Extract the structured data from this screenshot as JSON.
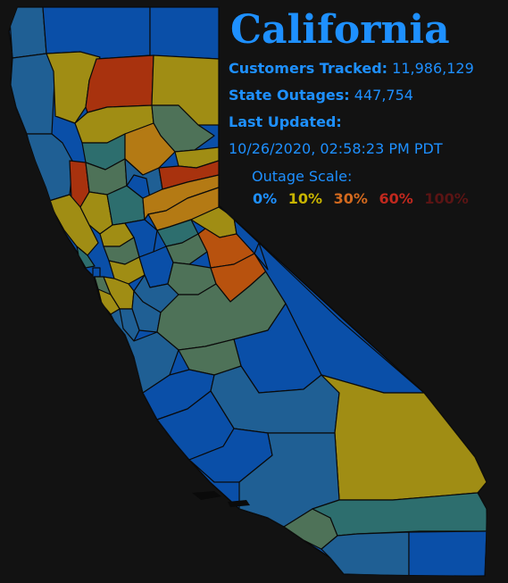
{
  "state": {
    "title": "California",
    "customers_label": "Customers Tracked:",
    "customers_value": "11,986,129",
    "outages_label": "State Outages:",
    "outages_value": "447,754",
    "updated_label": "Last Updated:",
    "updated_value": "10/26/2020, 02:58:23 PM PDT"
  },
  "scale": {
    "title": "Outage Scale:",
    "steps": [
      {
        "label": "0%",
        "color": "#1e90ff"
      },
      {
        "label": "10%",
        "color": "#c8b400"
      },
      {
        "label": "30%",
        "color": "#d2691e"
      },
      {
        "label": "60%",
        "color": "#c0281e"
      },
      {
        "label": "100%",
        "color": "#5a1414"
      }
    ]
  },
  "colors": {
    "blue": "#0a4fa8",
    "blue_steel": "#1f5f94",
    "teal": "#2d6e6e",
    "sage": "#4e7258",
    "olive": "#7a8a18",
    "gold": "#a08d14",
    "amber": "#b47a14",
    "orange": "#b8520e",
    "red_orange": "#a8320e",
    "border": "#0a0a0a"
  }
}
